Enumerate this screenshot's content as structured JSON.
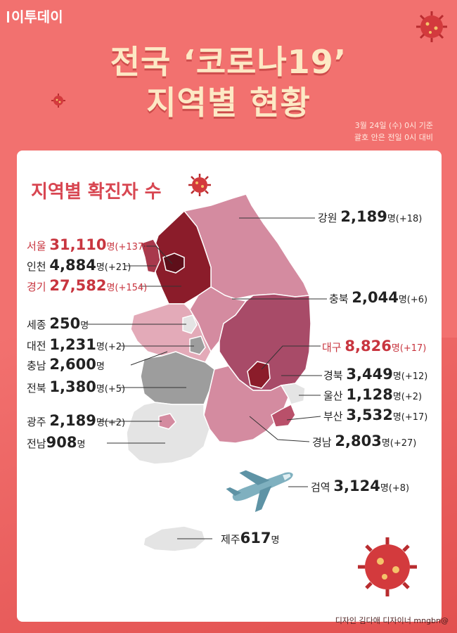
{
  "brand": "이투데이",
  "title": {
    "line1": "전국 ‘코로나19’",
    "line2": "지역별 현황"
  },
  "basis": {
    "line1": "3월 24일 (수) 0시 기준",
    "line2": "괄호 안은 전일 0시 대비"
  },
  "card_title": "지역별 확진자 수",
  "unit": "명",
  "regions": [
    {
      "id": "gangwon",
      "name": "강원",
      "count": "2,189",
      "change": "(+18)"
    },
    {
      "id": "seoul",
      "name": "서울",
      "count": "31,110",
      "change": "(+137)"
    },
    {
      "id": "incheon",
      "name": "인천",
      "count": "4,884",
      "change": "(+21)"
    },
    {
      "id": "gyeonggi",
      "name": "경기",
      "count": "27,582",
      "change": "(+154)"
    },
    {
      "id": "chungbuk",
      "name": "충북",
      "count": "2,044",
      "change": "(+6)"
    },
    {
      "id": "sejong",
      "name": "세종",
      "count": "250",
      "change": ""
    },
    {
      "id": "daejeon",
      "name": "대전",
      "count": "1,231",
      "change": "(+2)"
    },
    {
      "id": "chungnam",
      "name": "충남",
      "count": "2,600",
      "change": ""
    },
    {
      "id": "daegu",
      "name": "대구",
      "count": "8,826",
      "change": "(+17)"
    },
    {
      "id": "gyeongbuk",
      "name": "경북",
      "count": "3,449",
      "change": "(+12)"
    },
    {
      "id": "ulsan",
      "name": "울산",
      "count": "1,128",
      "change": "(+2)"
    },
    {
      "id": "jeonbuk",
      "name": "전북",
      "count": "1,380",
      "change": "(+5)"
    },
    {
      "id": "busan",
      "name": "부산",
      "count": "3,532",
      "change": "(+17)"
    },
    {
      "id": "gwangju",
      "name": "광주",
      "count": "2,189",
      "change": "(+2)"
    },
    {
      "id": "gyeongnam",
      "name": "경남",
      "count": "2,803",
      "change": "(+27)"
    },
    {
      "id": "jeonnam",
      "name": "전남",
      "count": "908",
      "change": ""
    },
    {
      "id": "quarantine",
      "name": "검역",
      "count": "3,124",
      "change": "(+8)"
    },
    {
      "id": "jeju",
      "name": "제주",
      "count": "617",
      "change": ""
    }
  ],
  "colors": {
    "background": "#f2716f",
    "title": "#fde9c5",
    "highlight_text": "#c8353f",
    "seoul": "#5e0f1a",
    "gyeonggi": "#8b1c2a",
    "incheon": "#a8394c",
    "gangwon": "#d48ba0",
    "chungbuk": "#d48ba0",
    "gyeongbuk": "#a84b68",
    "daegu": "#8b1c2a",
    "chungnam": "#e3aab8",
    "sejong": "#e4e4e4",
    "daejeon": "#9d9d9d",
    "jeonbuk": "#9d9d9d",
    "jeonnam": "#e4e4e4",
    "gwangju": "#d48ba0",
    "gyeongnam": "#d48ba0",
    "busan": "#b9506a",
    "ulsan": "#e4e4e4",
    "jeju": "#e4e4e4"
  },
  "footer": "디자인 김다애 디자이너 mngbn@"
}
